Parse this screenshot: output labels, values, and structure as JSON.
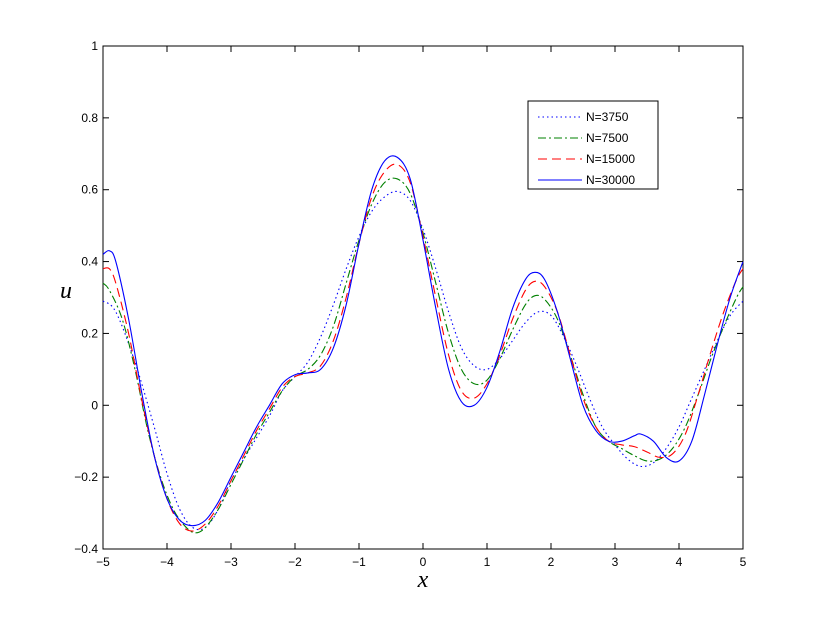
{
  "chart_data": {
    "type": "line",
    "title": "",
    "xlabel": "x",
    "ylabel": "u",
    "xlim": [
      -5,
      5
    ],
    "ylim": [
      -0.4,
      1
    ],
    "grid": false,
    "legend_position": "top-right",
    "x_ticks": [
      {
        "value": -5,
        "label": "−5"
      },
      {
        "value": -4,
        "label": "−4"
      },
      {
        "value": -3,
        "label": "−3"
      },
      {
        "value": -2,
        "label": "−2"
      },
      {
        "value": -1,
        "label": "−1"
      },
      {
        "value": 0,
        "label": "0"
      },
      {
        "value": 1,
        "label": "1"
      },
      {
        "value": 2,
        "label": "2"
      },
      {
        "value": 3,
        "label": "3"
      },
      {
        "value": 4,
        "label": "4"
      },
      {
        "value": 5,
        "label": "5"
      }
    ],
    "y_ticks": [
      {
        "value": -0.4,
        "label": "−0.4"
      },
      {
        "value": -0.2,
        "label": "−0.2"
      },
      {
        "value": 0,
        "label": "0"
      },
      {
        "value": 0.2,
        "label": "0.2"
      },
      {
        "value": 0.4,
        "label": "0.4"
      },
      {
        "value": 0.6,
        "label": "0.6"
      },
      {
        "value": 0.8,
        "label": "0.8"
      },
      {
        "value": 1,
        "label": "1"
      }
    ],
    "series": [
      {
        "name": "N=3750",
        "color": "#0000ff",
        "dash": "dotted",
        "points": [
          [
            -5.0,
            0.29
          ],
          [
            -4.8,
            0.26
          ],
          [
            -4.5,
            0.12
          ],
          [
            -4.2,
            -0.06
          ],
          [
            -4.0,
            -0.19
          ],
          [
            -3.8,
            -0.29
          ],
          [
            -3.6,
            -0.34
          ],
          [
            -3.4,
            -0.34
          ],
          [
            -3.2,
            -0.29
          ],
          [
            -3.0,
            -0.21
          ],
          [
            -2.7,
            -0.12
          ],
          [
            -2.4,
            -0.03
          ],
          [
            -2.2,
            0.04
          ],
          [
            -2.0,
            0.08
          ],
          [
            -1.8,
            0.12
          ],
          [
            -1.6,
            0.19
          ],
          [
            -1.4,
            0.28
          ],
          [
            -1.2,
            0.38
          ],
          [
            -1.0,
            0.47
          ],
          [
            -0.8,
            0.54
          ],
          [
            -0.6,
            0.58
          ],
          [
            -0.4,
            0.595
          ],
          [
            -0.2,
            0.57
          ],
          [
            0.0,
            0.49
          ],
          [
            0.2,
            0.38
          ],
          [
            0.4,
            0.26
          ],
          [
            0.6,
            0.16
          ],
          [
            0.8,
            0.11
          ],
          [
            1.0,
            0.1
          ],
          [
            1.2,
            0.13
          ],
          [
            1.4,
            0.18
          ],
          [
            1.6,
            0.23
          ],
          [
            1.8,
            0.26
          ],
          [
            2.0,
            0.25
          ],
          [
            2.2,
            0.19
          ],
          [
            2.4,
            0.11
          ],
          [
            2.6,
            0.02
          ],
          [
            2.8,
            -0.06
          ],
          [
            3.0,
            -0.11
          ],
          [
            3.2,
            -0.15
          ],
          [
            3.4,
            -0.17
          ],
          [
            3.6,
            -0.16
          ],
          [
            3.8,
            -0.12
          ],
          [
            4.0,
            -0.06
          ],
          [
            4.2,
            0.02
          ],
          [
            4.4,
            0.1
          ],
          [
            4.6,
            0.18
          ],
          [
            4.8,
            0.25
          ],
          [
            5.0,
            0.29
          ]
        ]
      },
      {
        "name": "N=7500",
        "color": "#008000",
        "dash": "dashdot",
        "points": [
          [
            -5.0,
            0.34
          ],
          [
            -4.9,
            0.32
          ],
          [
            -4.7,
            0.24
          ],
          [
            -4.5,
            0.1
          ],
          [
            -4.3,
            -0.07
          ],
          [
            -4.1,
            -0.2
          ],
          [
            -3.9,
            -0.29
          ],
          [
            -3.7,
            -0.34
          ],
          [
            -3.55,
            -0.355
          ],
          [
            -3.4,
            -0.34
          ],
          [
            -3.2,
            -0.29
          ],
          [
            -3.0,
            -0.22
          ],
          [
            -2.8,
            -0.15
          ],
          [
            -2.6,
            -0.08
          ],
          [
            -2.4,
            -0.02
          ],
          [
            -2.2,
            0.04
          ],
          [
            -2.0,
            0.08
          ],
          [
            -1.8,
            0.1
          ],
          [
            -1.6,
            0.14
          ],
          [
            -1.4,
            0.22
          ],
          [
            -1.2,
            0.34
          ],
          [
            -1.0,
            0.46
          ],
          [
            -0.8,
            0.56
          ],
          [
            -0.6,
            0.62
          ],
          [
            -0.4,
            0.63
          ],
          [
            -0.2,
            0.59
          ],
          [
            0.0,
            0.48
          ],
          [
            0.2,
            0.34
          ],
          [
            0.4,
            0.2
          ],
          [
            0.6,
            0.1
          ],
          [
            0.8,
            0.06
          ],
          [
            1.0,
            0.07
          ],
          [
            1.2,
            0.13
          ],
          [
            1.4,
            0.21
          ],
          [
            1.6,
            0.28
          ],
          [
            1.75,
            0.305
          ],
          [
            1.9,
            0.295
          ],
          [
            2.1,
            0.24
          ],
          [
            2.3,
            0.14
          ],
          [
            2.5,
            0.03
          ],
          [
            2.7,
            -0.06
          ],
          [
            2.9,
            -0.1
          ],
          [
            3.1,
            -0.12
          ],
          [
            3.3,
            -0.14
          ],
          [
            3.5,
            -0.155
          ],
          [
            3.7,
            -0.15
          ],
          [
            3.9,
            -0.12
          ],
          [
            4.1,
            -0.06
          ],
          [
            4.3,
            0.03
          ],
          [
            4.5,
            0.13
          ],
          [
            4.7,
            0.22
          ],
          [
            4.9,
            0.3
          ],
          [
            5.0,
            0.33
          ]
        ]
      },
      {
        "name": "N=15000",
        "color": "#ff0000",
        "dash": "dashed",
        "points": [
          [
            -5.0,
            0.38
          ],
          [
            -4.9,
            0.38
          ],
          [
            -4.8,
            0.34
          ],
          [
            -4.6,
            0.2
          ],
          [
            -4.4,
            0.02
          ],
          [
            -4.2,
            -0.14
          ],
          [
            -4.0,
            -0.26
          ],
          [
            -3.8,
            -0.33
          ],
          [
            -3.6,
            -0.35
          ],
          [
            -3.4,
            -0.33
          ],
          [
            -3.2,
            -0.28
          ],
          [
            -3.0,
            -0.21
          ],
          [
            -2.8,
            -0.14
          ],
          [
            -2.6,
            -0.07
          ],
          [
            -2.4,
            -0.01
          ],
          [
            -2.2,
            0.05
          ],
          [
            -2.0,
            0.08
          ],
          [
            -1.8,
            0.09
          ],
          [
            -1.6,
            0.11
          ],
          [
            -1.4,
            0.18
          ],
          [
            -1.2,
            0.3
          ],
          [
            -1.0,
            0.45
          ],
          [
            -0.8,
            0.58
          ],
          [
            -0.6,
            0.65
          ],
          [
            -0.4,
            0.67
          ],
          [
            -0.2,
            0.62
          ],
          [
            0.0,
            0.47
          ],
          [
            0.2,
            0.3
          ],
          [
            0.4,
            0.14
          ],
          [
            0.6,
            0.04
          ],
          [
            0.8,
            0.02
          ],
          [
            1.0,
            0.06
          ],
          [
            1.2,
            0.14
          ],
          [
            1.4,
            0.24
          ],
          [
            1.6,
            0.32
          ],
          [
            1.75,
            0.345
          ],
          [
            1.9,
            0.33
          ],
          [
            2.1,
            0.26
          ],
          [
            2.3,
            0.14
          ],
          [
            2.5,
            0.02
          ],
          [
            2.7,
            -0.06
          ],
          [
            2.9,
            -0.1
          ],
          [
            3.1,
            -0.11
          ],
          [
            3.3,
            -0.115
          ],
          [
            3.5,
            -0.13
          ],
          [
            3.7,
            -0.145
          ],
          [
            3.9,
            -0.135
          ],
          [
            4.1,
            -0.08
          ],
          [
            4.3,
            0.03
          ],
          [
            4.5,
            0.15
          ],
          [
            4.7,
            0.26
          ],
          [
            4.9,
            0.35
          ],
          [
            5.0,
            0.38
          ]
        ]
      },
      {
        "name": "N=30000",
        "color": "#0000ff",
        "dash": "solid",
        "points": [
          [
            -5.0,
            0.42
          ],
          [
            -4.9,
            0.43
          ],
          [
            -4.8,
            0.4
          ],
          [
            -4.6,
            0.24
          ],
          [
            -4.4,
            0.04
          ],
          [
            -4.2,
            -0.14
          ],
          [
            -4.0,
            -0.26
          ],
          [
            -3.8,
            -0.32
          ],
          [
            -3.6,
            -0.335
          ],
          [
            -3.4,
            -0.32
          ],
          [
            -3.2,
            -0.27
          ],
          [
            -3.0,
            -0.2
          ],
          [
            -2.8,
            -0.13
          ],
          [
            -2.6,
            -0.06
          ],
          [
            -2.4,
            0.0
          ],
          [
            -2.2,
            0.06
          ],
          [
            -2.0,
            0.085
          ],
          [
            -1.8,
            0.09
          ],
          [
            -1.6,
            0.1
          ],
          [
            -1.4,
            0.16
          ],
          [
            -1.2,
            0.28
          ],
          [
            -1.0,
            0.45
          ],
          [
            -0.8,
            0.6
          ],
          [
            -0.6,
            0.68
          ],
          [
            -0.4,
            0.69
          ],
          [
            -0.2,
            0.63
          ],
          [
            0.0,
            0.46
          ],
          [
            0.2,
            0.27
          ],
          [
            0.4,
            0.1
          ],
          [
            0.6,
            0.01
          ],
          [
            0.8,
            0.0
          ],
          [
            1.0,
            0.05
          ],
          [
            1.2,
            0.15
          ],
          [
            1.4,
            0.27
          ],
          [
            1.6,
            0.35
          ],
          [
            1.75,
            0.37
          ],
          [
            1.9,
            0.35
          ],
          [
            2.1,
            0.26
          ],
          [
            2.3,
            0.13
          ],
          [
            2.5,
            0.0
          ],
          [
            2.7,
            -0.07
          ],
          [
            2.9,
            -0.1
          ],
          [
            3.1,
            -0.1
          ],
          [
            3.3,
            -0.085
          ],
          [
            3.4,
            -0.08
          ],
          [
            3.6,
            -0.1
          ],
          [
            3.8,
            -0.145
          ],
          [
            4.0,
            -0.155
          ],
          [
            4.2,
            -0.1
          ],
          [
            4.4,
            0.03
          ],
          [
            4.6,
            0.17
          ],
          [
            4.8,
            0.3
          ],
          [
            5.0,
            0.4
          ]
        ]
      }
    ]
  }
}
